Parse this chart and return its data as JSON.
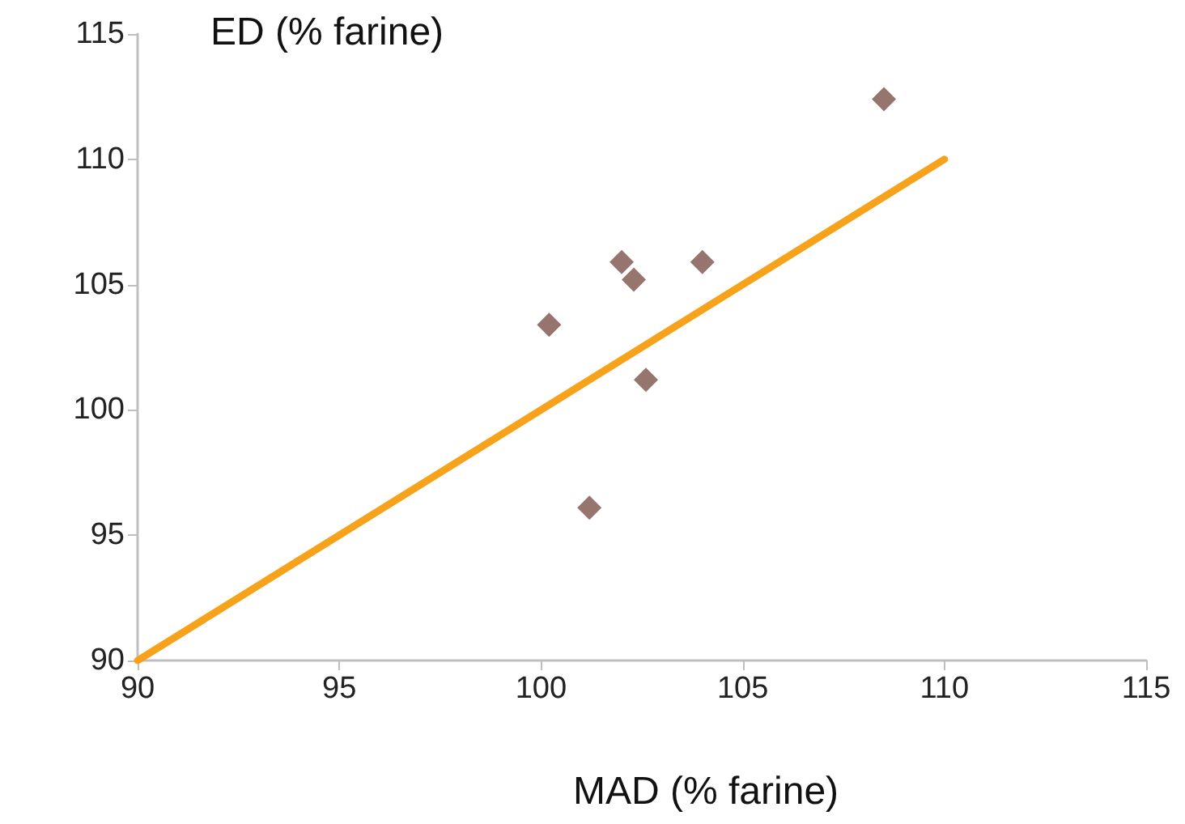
{
  "chart_data": {
    "type": "scatter",
    "xlabel": "MAD (% farine)",
    "ylabel": "ED (% farine)",
    "xlim": [
      90,
      115
    ],
    "xticks": [
      90,
      95,
      100,
      105,
      110,
      115
    ],
    "ylim": [
      90,
      115
    ],
    "yticks": [
      90,
      95,
      100,
      105,
      110,
      115
    ],
    "grid": false,
    "marker": "diamond",
    "series": [
      {
        "color": "#7b5348",
        "x": [
          100.2,
          102.0,
          102.3,
          104.0,
          102.6,
          101.2,
          108.5
        ],
        "values": [
          103.4,
          105.9,
          105.2,
          105.9,
          101.2,
          96.1,
          112.4
        ]
      },
      {
        "type": "line",
        "color": "#f7a21b",
        "marker": "none",
        "line_style": "solid",
        "x": [
          90,
          110
        ],
        "values": [
          90,
          110
        ]
      }
    ]
  }
}
